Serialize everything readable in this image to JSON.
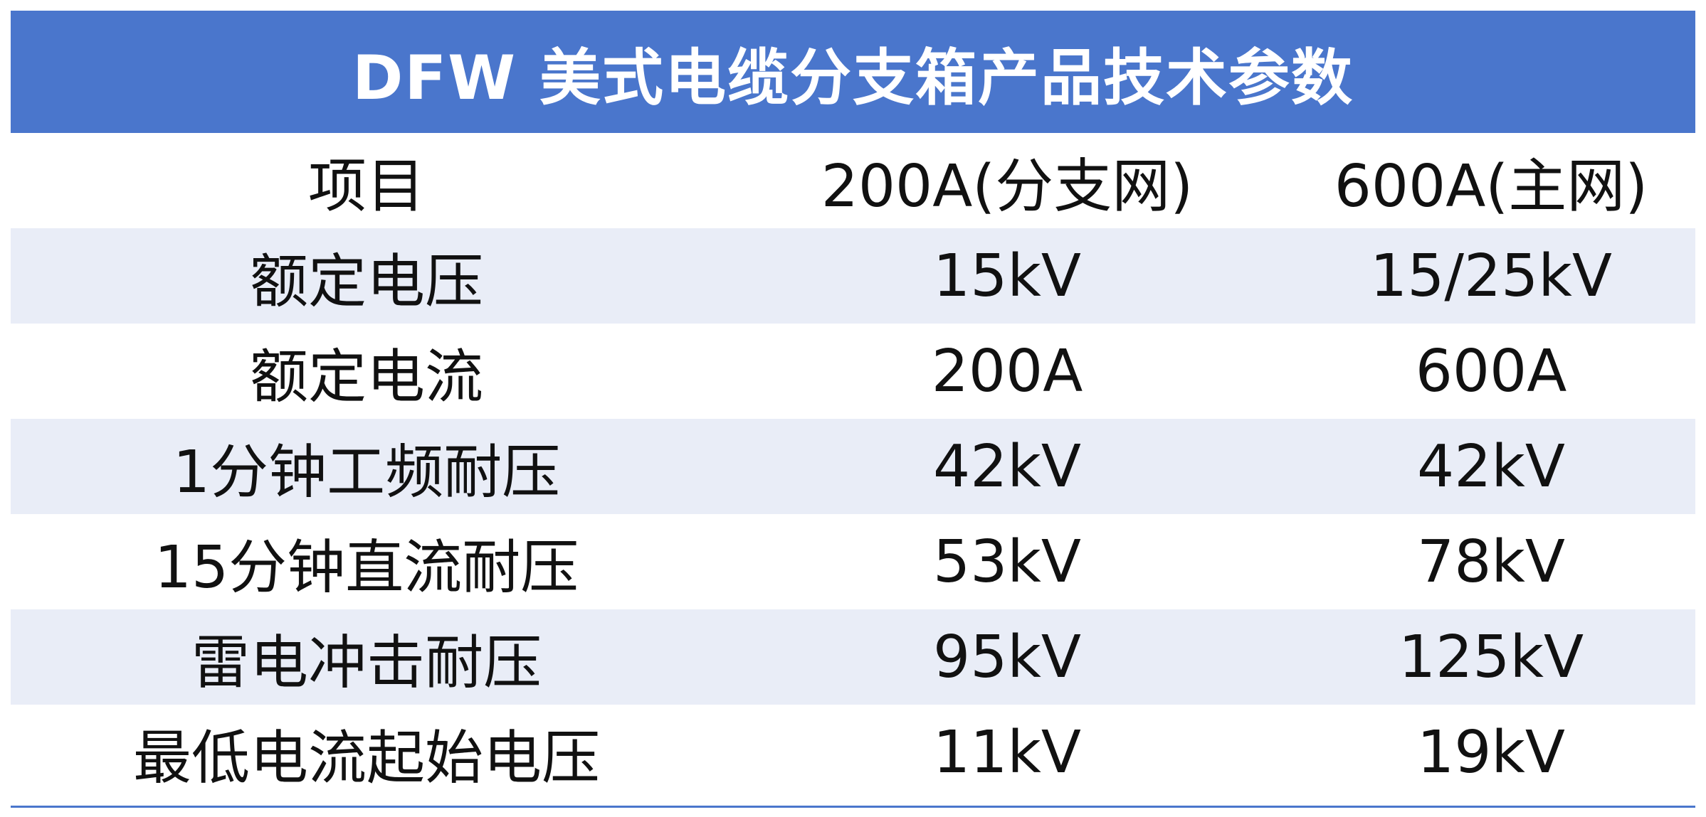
{
  "title": "DFW 美式电缆分支箱产品技术参数",
  "header": {
    "item": "项目",
    "col200": "200A(分支网)",
    "col600": "600A(主网)"
  },
  "rows": [
    {
      "item": "额定电压",
      "v200": "15kV",
      "v600": "15/25kV"
    },
    {
      "item": "额定电流",
      "v200": "200A",
      "v600": "600A"
    },
    {
      "item": "1分钟工频耐压",
      "v200": "42kV",
      "v600": "42kV"
    },
    {
      "item": "15分钟直流耐压",
      "v200": "53kV",
      "v600": "78kV"
    },
    {
      "item": "雷电冲击耐压",
      "v200": "95kV",
      "v600": "125kV"
    },
    {
      "item": "最低电流起始电压",
      "v200": "11kV",
      "v600": "19kV"
    }
  ],
  "colors": {
    "title_bg": "#4a76cc",
    "row_shade": "#e9edf7"
  }
}
